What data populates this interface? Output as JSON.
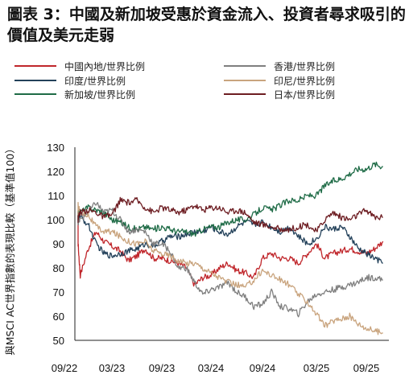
{
  "title": "圖表 3：中國及新加坡受惠於資金流入、投資者尋求吸引的價值及美元走弱",
  "colors": {
    "china": "#c0262b",
    "india": "#23415a",
    "singapore": "#1e6b46",
    "hongkong": "#7f7f7f",
    "indonesia": "#c9a47e",
    "japan": "#6d1d22"
  },
  "chart_data": {
    "type": "line",
    "title": "圖表 3：中國及新加坡受惠於資金流入、投資者尋求吸引的價值及美元走弱",
    "ylabel": "與MSCI AC世界指數的表現比較（基準值100）",
    "xlabel": "",
    "ylim": [
      50,
      130
    ],
    "yticks": [
      "50",
      "60",
      "70",
      "80",
      "90",
      "100",
      "110",
      "120",
      "130"
    ],
    "xticks": [
      "09/22",
      "03/23",
      "09/23",
      "03/24",
      "09/24",
      "03/25",
      "09/25"
    ],
    "legend_position": "top",
    "grid": false,
    "series": [
      {
        "name": "中國內地/世界比例",
        "color_key": "china",
        "x": [
          "09/22",
          "10/22",
          "11/22",
          "12/22",
          "01/23",
          "02/23",
          "03/23",
          "04/23",
          "05/23",
          "06/23",
          "07/23",
          "08/23",
          "09/23",
          "10/23",
          "11/23",
          "12/23",
          "01/24",
          "02/24",
          "03/24",
          "04/24",
          "05/24",
          "06/24",
          "07/24",
          "08/24",
          "09/24",
          "10/24",
          "11/24",
          "12/24",
          "01/25",
          "02/25",
          "03/25",
          "04/25",
          "05/25",
          "06/25",
          "07/25",
          "08/25",
          "09/25",
          "10/25",
          "11/25"
        ],
        "values": [
          98,
          90,
          77,
          88,
          95,
          91,
          89,
          87,
          83,
          85,
          88,
          84,
          84,
          83,
          82,
          80,
          73,
          76,
          77,
          80,
          82,
          79,
          78,
          76,
          84,
          86,
          84,
          84,
          82,
          86,
          90,
          84,
          86,
          87,
          88,
          87,
          86,
          88,
          91
        ]
      },
      {
        "name": "印度/世界比例",
        "color_key": "india",
        "x": [
          "09/22",
          "10/22",
          "11/22",
          "12/22",
          "01/23",
          "02/23",
          "03/23",
          "04/23",
          "05/23",
          "06/23",
          "07/23",
          "08/23",
          "09/23",
          "10/23",
          "11/23",
          "12/23",
          "01/24",
          "02/24",
          "03/24",
          "04/24",
          "05/24",
          "06/24",
          "07/24",
          "08/24",
          "09/24",
          "10/24",
          "11/24",
          "12/24",
          "01/25",
          "02/25",
          "03/25",
          "04/25",
          "05/25",
          "06/25",
          "07/25",
          "08/25",
          "09/25",
          "10/25",
          "11/25"
        ],
        "values": [
          100,
          103,
          101,
          98,
          90,
          86,
          85,
          86,
          87,
          88,
          90,
          89,
          91,
          93,
          93,
          94,
          95,
          95,
          97,
          95,
          94,
          97,
          99,
          98,
          99,
          97,
          95,
          97,
          93,
          90,
          92,
          97,
          96,
          97,
          93,
          88,
          86,
          84,
          82
        ]
      },
      {
        "name": "新加坡/世界比例",
        "color_key": "singapore",
        "x": [
          "09/22",
          "10/22",
          "11/22",
          "12/22",
          "01/23",
          "02/23",
          "03/23",
          "04/23",
          "05/23",
          "06/23",
          "07/23",
          "08/23",
          "09/23",
          "10/23",
          "11/23",
          "12/23",
          "01/24",
          "02/24",
          "03/24",
          "04/24",
          "05/24",
          "06/24",
          "07/24",
          "08/24",
          "09/24",
          "10/24",
          "11/24",
          "12/24",
          "01/25",
          "02/25",
          "03/25",
          "04/25",
          "05/25",
          "06/25",
          "07/25",
          "08/25",
          "09/25",
          "10/25",
          "11/25"
        ],
        "values": [
          100,
          103,
          103,
          105,
          104,
          103,
          100,
          99,
          97,
          96,
          97,
          96,
          97,
          96,
          95,
          95,
          94,
          96,
          97,
          97,
          99,
          100,
          100,
          102,
          105,
          104,
          106,
          108,
          108,
          110,
          110,
          114,
          116,
          117,
          119,
          121,
          121,
          123,
          122
        ]
      },
      {
        "name": "香港/世界比例",
        "color_key": "hongkong",
        "x": [
          "09/22",
          "10/22",
          "11/22",
          "12/22",
          "01/23",
          "02/23",
          "03/23",
          "04/23",
          "05/23",
          "06/23",
          "07/23",
          "08/23",
          "09/23",
          "10/23",
          "11/23",
          "12/23",
          "01/24",
          "02/24",
          "03/24",
          "04/24",
          "05/24",
          "06/24",
          "07/24",
          "08/24",
          "09/24",
          "10/24",
          "11/24",
          "12/24",
          "01/25",
          "02/25",
          "03/25",
          "04/25",
          "05/25",
          "06/25",
          "07/25",
          "08/25",
          "09/25",
          "10/25",
          "11/25"
        ],
        "values": [
          100,
          99,
          100,
          103,
          107,
          103,
          104,
          100,
          95,
          96,
          95,
          90,
          90,
          87,
          80,
          80,
          74,
          69,
          71,
          72,
          74,
          70,
          68,
          64,
          65,
          70,
          64,
          63,
          61,
          66,
          69,
          70,
          71,
          72,
          73,
          74,
          76,
          76,
          75
        ]
      },
      {
        "name": "印尼/世界比例",
        "color_key": "indonesia",
        "x": [
          "09/22",
          "10/22",
          "11/22",
          "12/22",
          "01/23",
          "02/23",
          "03/23",
          "04/23",
          "05/23",
          "06/23",
          "07/23",
          "08/23",
          "09/23",
          "10/23",
          "11/23",
          "12/23",
          "01/24",
          "02/24",
          "03/24",
          "04/24",
          "05/24",
          "06/24",
          "07/24",
          "08/24",
          "09/24",
          "10/24",
          "11/24",
          "12/24",
          "01/25",
          "02/25",
          "03/25",
          "04/25",
          "05/25",
          "06/25",
          "07/25",
          "08/25",
          "09/25",
          "10/25",
          "11/25"
        ],
        "values": [
          100,
          106,
          103,
          102,
          97,
          95,
          95,
          93,
          91,
          90,
          91,
          87,
          86,
          85,
          83,
          82,
          82,
          80,
          78,
          76,
          74,
          73,
          72,
          75,
          79,
          77,
          75,
          73,
          69,
          66,
          61,
          56,
          58,
          59,
          60,
          57,
          55,
          54,
          53
        ]
      },
      {
        "name": "日本/世界比例",
        "color_key": "japan",
        "x": [
          "09/22",
          "10/22",
          "11/22",
          "12/22",
          "01/23",
          "02/23",
          "03/23",
          "04/23",
          "05/23",
          "06/23",
          "07/23",
          "08/23",
          "09/23",
          "10/23",
          "11/23",
          "12/23",
          "01/24",
          "02/24",
          "03/24",
          "04/24",
          "05/24",
          "06/24",
          "07/24",
          "08/24",
          "09/24",
          "10/24",
          "11/24",
          "12/24",
          "01/25",
          "02/25",
          "03/25",
          "04/25",
          "05/25",
          "06/25",
          "07/25",
          "08/25",
          "09/25",
          "10/25",
          "11/25"
        ],
        "values": [
          100,
          101,
          103,
          104,
          103,
          101,
          102,
          108,
          107,
          108,
          105,
          103,
          105,
          104,
          103,
          104,
          106,
          104,
          105,
          105,
          103,
          104,
          103,
          99,
          98,
          97,
          96,
          96,
          97,
          98,
          95,
          100,
          103,
          101,
          100,
          102,
          104,
          101,
          101
        ]
      }
    ]
  }
}
